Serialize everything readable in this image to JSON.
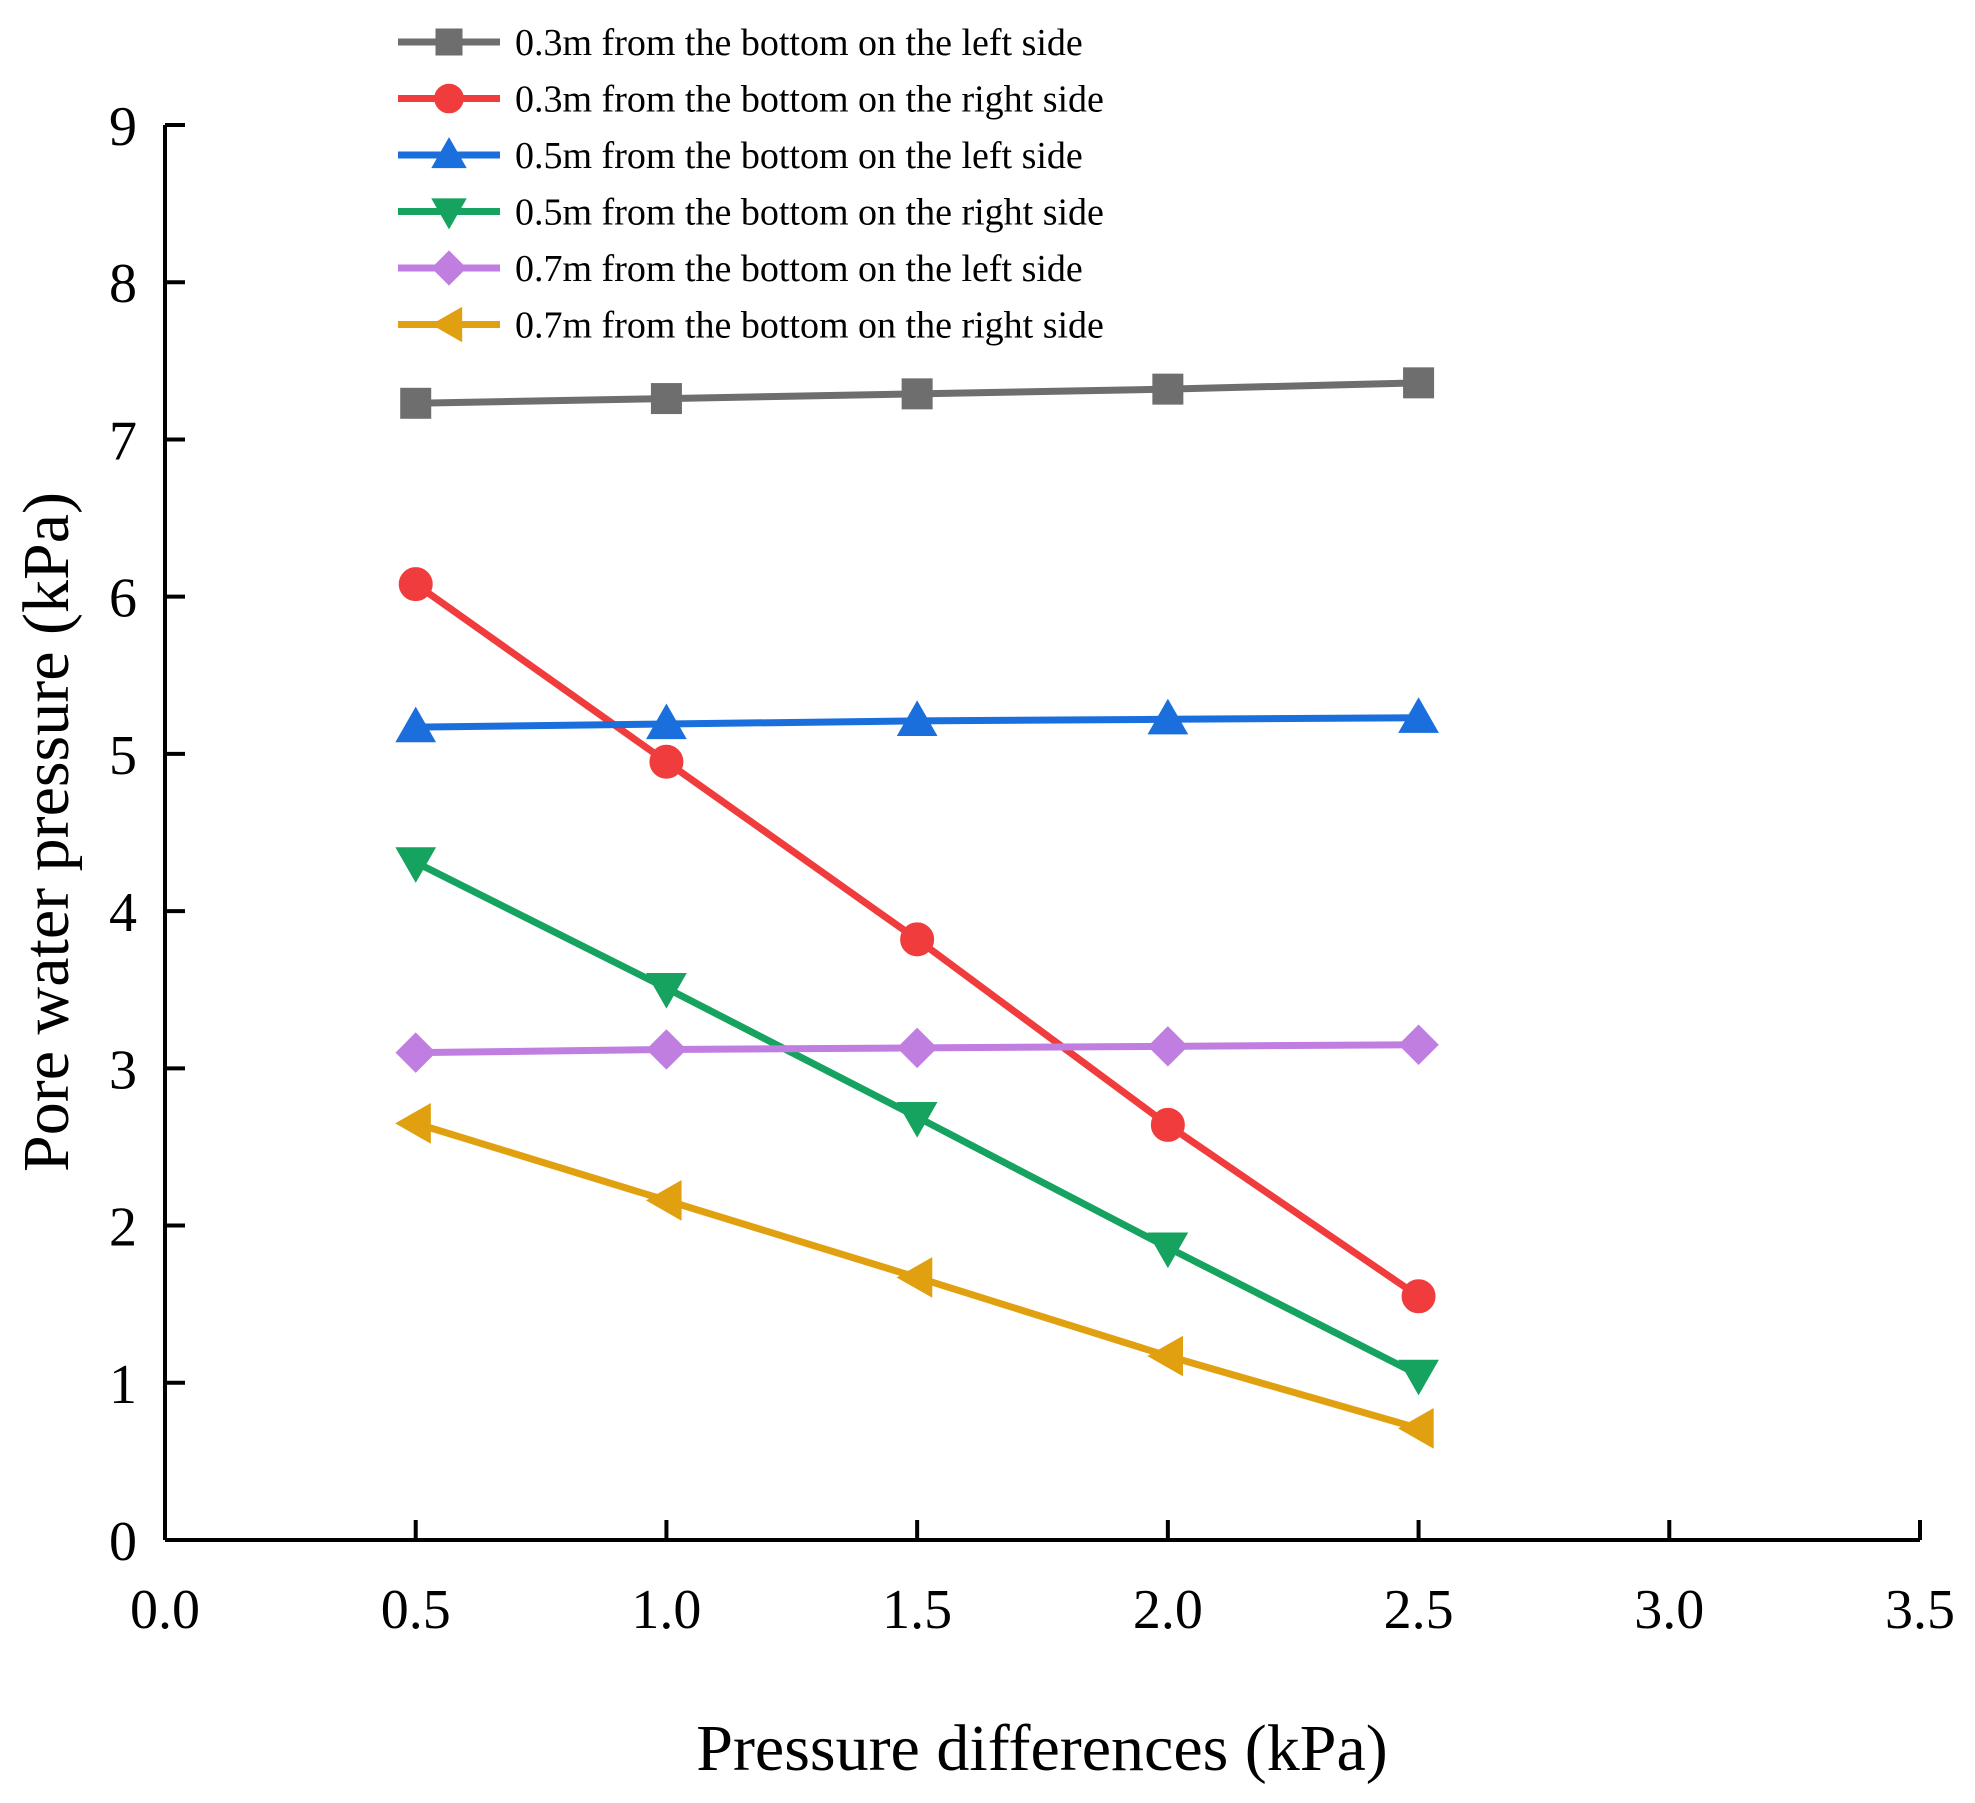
{
  "chart_data": {
    "type": "line",
    "title": "",
    "xlabel": "Pressure differences (kPa)",
    "ylabel": "Pore water pressure (kPa)",
    "xlim": [
      0,
      3.5
    ],
    "ylim": [
      0,
      9
    ],
    "x_ticks": [
      0.0,
      0.5,
      1.0,
      1.5,
      2.0,
      2.5,
      3.0,
      3.5
    ],
    "x_tick_labels": [
      "0.0",
      "0.5",
      "1.0",
      "1.5",
      "2.0",
      "2.5",
      "3.0",
      "3.5"
    ],
    "y_ticks": [
      0,
      1,
      2,
      3,
      4,
      5,
      6,
      7,
      8,
      9
    ],
    "y_tick_labels": [
      "0",
      "1",
      "2",
      "3",
      "4",
      "5",
      "6",
      "7",
      "8",
      "9"
    ],
    "grid": false,
    "legend_position": "top-left",
    "x": [
      0.5,
      1.0,
      1.5,
      2.0,
      2.5
    ],
    "series": [
      {
        "name": "0.3m from the bottom on the left side",
        "values": [
          7.23,
          7.26,
          7.29,
          7.32,
          7.36
        ],
        "color": "#6e6e6e",
        "marker": "square"
      },
      {
        "name": "0.3m from the bottom on the right side",
        "values": [
          6.08,
          4.95,
          3.82,
          2.64,
          1.55
        ],
        "color": "#f03c3c",
        "marker": "circle"
      },
      {
        "name": "0.5m from the bottom on the left side",
        "values": [
          5.17,
          5.19,
          5.21,
          5.22,
          5.23
        ],
        "color": "#1a6fdc",
        "marker": "triangle-up"
      },
      {
        "name": "0.5m from the bottom on the right side",
        "values": [
          4.31,
          3.51,
          2.69,
          1.86,
          1.05
        ],
        "color": "#16a35f",
        "marker": "triangle-down"
      },
      {
        "name": "0.7m from the bottom on the left side",
        "values": [
          3.1,
          3.12,
          3.13,
          3.14,
          3.15
        ],
        "color": "#c07fe0",
        "marker": "diamond"
      },
      {
        "name": "0.7m from the bottom on the right side",
        "values": [
          2.65,
          2.16,
          1.67,
          1.17,
          0.71
        ],
        "color": "#e0a010",
        "marker": "triangle-left"
      }
    ]
  }
}
